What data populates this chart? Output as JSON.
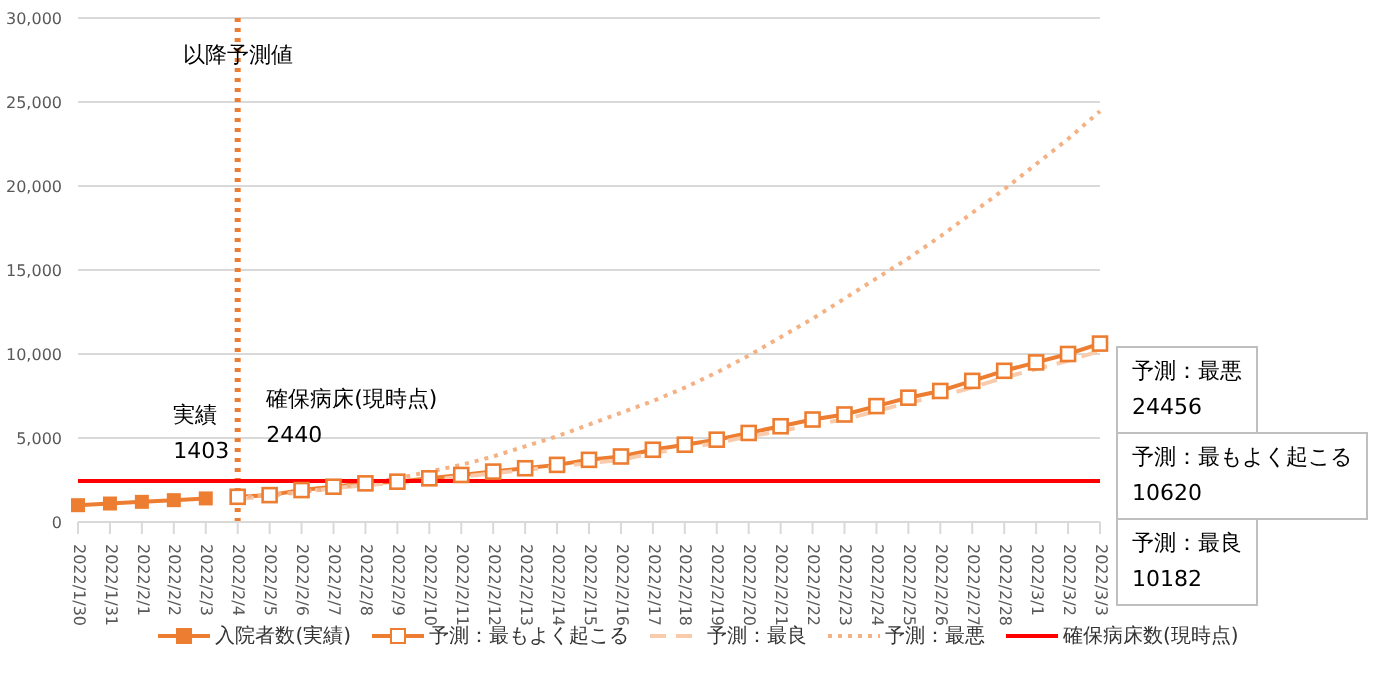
{
  "chart_data": {
    "type": "line",
    "categories": [
      "2022/1/30",
      "2022/1/31",
      "2022/2/1",
      "2022/2/2",
      "2022/2/3",
      "2022/2/4",
      "2022/2/5",
      "2022/2/6",
      "2022/2/7",
      "2022/2/8",
      "2022/2/9",
      "2022/2/10",
      "2022/2/11",
      "2022/2/12",
      "2022/2/13",
      "2022/2/14",
      "2022/2/15",
      "2022/2/16",
      "2022/2/17",
      "2022/2/18",
      "2022/2/19",
      "2022/2/20",
      "2022/2/21",
      "2022/2/22",
      "2022/2/23",
      "2022/2/24",
      "2022/2/25",
      "2022/2/26",
      "2022/2/27",
      "2022/2/28",
      "2022/3/1",
      "2022/3/2",
      "2022/3/3"
    ],
    "series": [
      {
        "name": "入院者数(実績)",
        "color": "#ed7d31",
        "marker": "square",
        "line_style": "solid",
        "values": [
          1000,
          1100,
          1200,
          1300,
          1403,
          null,
          null,
          null,
          null,
          null,
          null,
          null,
          null,
          null,
          null,
          null,
          null,
          null,
          null,
          null,
          null,
          null,
          null,
          null,
          null,
          null,
          null,
          null,
          null,
          null,
          null,
          null,
          null
        ]
      },
      {
        "name": "予測：最もよく起こる",
        "color": "#ed7d31",
        "marker": "square",
        "line_style": "solid",
        "values": [
          null,
          null,
          null,
          null,
          null,
          1500,
          1600,
          1900,
          2100,
          2300,
          2400,
          2600,
          2800,
          3000,
          3200,
          3400,
          3700,
          3900,
          4300,
          4600,
          4900,
          5300,
          5700,
          6100,
          6400,
          6900,
          7400,
          7800,
          8400,
          9000,
          9500,
          10000,
          10620
        ]
      },
      {
        "name": "予測：最良",
        "color": "#f8cbad",
        "marker": "none",
        "line_style": "dashed",
        "values": [
          null,
          null,
          null,
          null,
          null,
          1400,
          1500,
          1800,
          2000,
          2200,
          2300,
          2500,
          2700,
          2900,
          3100,
          3300,
          3500,
          3700,
          4100,
          4400,
          4700,
          5100,
          5400,
          5800,
          6100,
          6600,
          7100,
          7500,
          8000,
          8600,
          9100,
          9600,
          10182
        ]
      },
      {
        "name": "予測：最悪",
        "color": "#f4b183",
        "marker": "none",
        "line_style": "dotted",
        "values": [
          null,
          null,
          null,
          null,
          null,
          1500,
          1600,
          1800,
          2000,
          2300,
          2600,
          3000,
          3400,
          3900,
          4500,
          5100,
          5800,
          6500,
          7200,
          8000,
          8900,
          9900,
          11000,
          12100,
          13300,
          14500,
          15700,
          17000,
          18400,
          19800,
          21300,
          22800,
          24456
        ]
      },
      {
        "name": "確保病床数(現時点)",
        "color": "#ff0000",
        "marker": "none",
        "line_style": "solid",
        "values": [
          2440,
          2440,
          2440,
          2440,
          2440,
          2440,
          2440,
          2440,
          2440,
          2440,
          2440,
          2440,
          2440,
          2440,
          2440,
          2440,
          2440,
          2440,
          2440,
          2440,
          2440,
          2440,
          2440,
          2440,
          2440,
          2440,
          2440,
          2440,
          2440,
          2440,
          2440,
          2440,
          2440
        ]
      }
    ],
    "ylim": [
      0,
      30000
    ],
    "yticks": [
      {
        "value": 0,
        "label": "0"
      },
      {
        "value": 5000,
        "label": "5,000"
      },
      {
        "value": 10000,
        "label": "10,000"
      },
      {
        "value": 15000,
        "label": "15,000"
      },
      {
        "value": 20000,
        "label": "20,000"
      },
      {
        "value": 25000,
        "label": "25,000"
      },
      {
        "value": 30000,
        "label": "30,000"
      }
    ],
    "grid": "y",
    "legend": "bottom",
    "ref_lines": [
      {
        "axis": "x",
        "value": "2022/2/4",
        "label": "以降予測値",
        "color": "#ed7d31",
        "line_style": "dotted"
      }
    ],
    "annotations": [
      {
        "text": "実績\n1403",
        "x": "2022/2/3",
        "y": 1403
      },
      {
        "text": "確保病床(現時点)\n2440",
        "x": "2022/2/6",
        "y": 2440
      },
      "予測：最悪\n24456",
      "予測：最もよく起こる\n10620",
      "予測：最良\n10182"
    ]
  }
}
